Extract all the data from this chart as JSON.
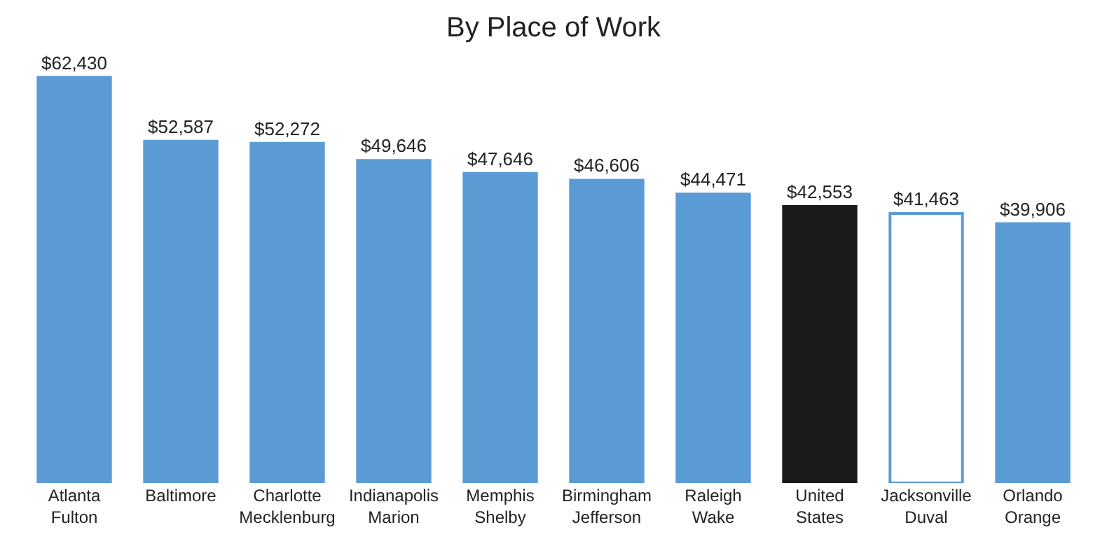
{
  "chart_data": {
    "type": "bar",
    "title": "By Place of Work",
    "categories": [
      "Atlanta\nFulton",
      "Baltimore",
      "Charlotte\nMecklenburg",
      "Indianapolis\nMarion",
      "Memphis\nShelby",
      "Birmingham\nJefferson",
      "Raleigh\nWake",
      "United\nStates",
      "Jacksonville\nDuval",
      "Orlando\nOrange"
    ],
    "values": [
      62430,
      52587,
      52272,
      49646,
      47646,
      46606,
      44471,
      42553,
      41463,
      39906
    ],
    "value_labels": [
      "$62,430",
      "$52,587",
      "$52,272",
      "$49,646",
      "$47,646",
      "$46,606",
      "$44,471",
      "$42,553",
      "$41,463",
      "$39,906"
    ],
    "colors": [
      "#5b9bd5",
      "#5b9bd5",
      "#5b9bd5",
      "#5b9bd5",
      "#5b9bd5",
      "#5b9bd5",
      "#5b9bd5",
      "#1a1a1a",
      "#ffffff",
      "#5b9bd5"
    ]
  }
}
